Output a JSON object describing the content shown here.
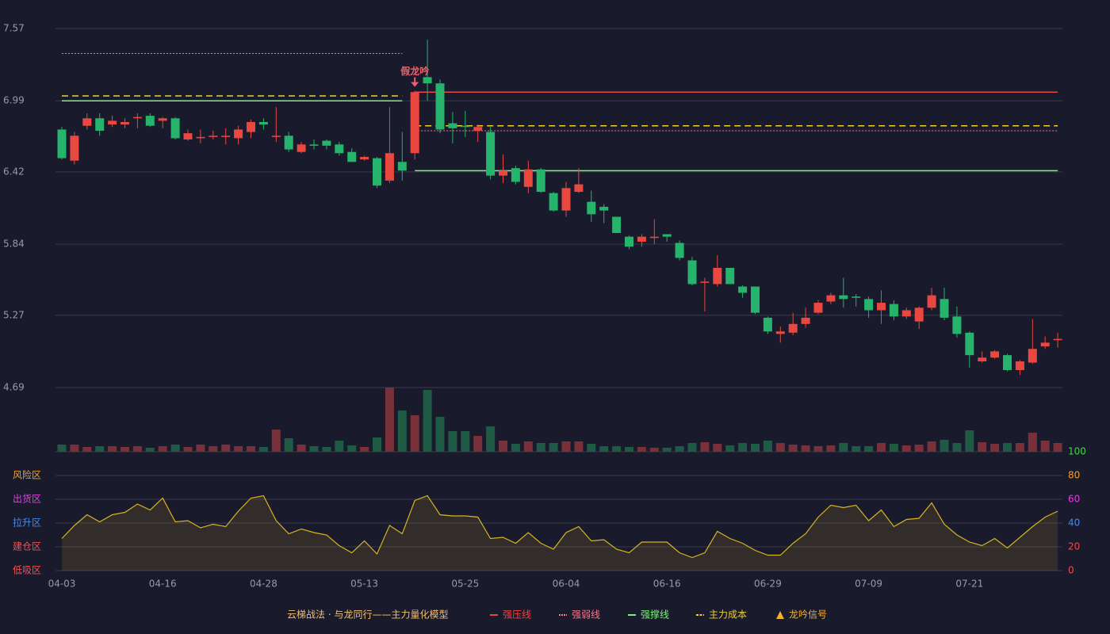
{
  "chart_data": {
    "type": "candlestick",
    "categories": [
      "04-03",
      null,
      null,
      null,
      null,
      null,
      null,
      null,
      "04-16",
      null,
      null,
      null,
      null,
      null,
      null,
      null,
      "04-28",
      null,
      null,
      null,
      null,
      null,
      null,
      null,
      "05-13",
      null,
      null,
      null,
      null,
      null,
      null,
      null,
      "05-25",
      null,
      null,
      null,
      null,
      null,
      null,
      null,
      "06-04",
      null,
      null,
      null,
      null,
      null,
      null,
      null,
      "06-16",
      null,
      null,
      null,
      null,
      null,
      null,
      null,
      "06-29",
      null,
      null,
      null,
      null,
      null,
      null,
      null,
      "07-09",
      null,
      null,
      null,
      null,
      null,
      null,
      null,
      "07-21",
      null,
      null,
      null,
      null,
      null,
      null,
      null
    ],
    "open": [
      6.76,
      6.51,
      6.79,
      6.85,
      6.8,
      6.8,
      6.85,
      6.87,
      6.83,
      6.85,
      6.68,
      6.69,
      6.7,
      6.7,
      6.69,
      6.74,
      6.82,
      6.7,
      6.71,
      6.58,
      6.64,
      6.67,
      6.64,
      6.58,
      6.52,
      6.53,
      6.35,
      6.5,
      6.57,
      7.18,
      7.13,
      6.81,
      6.79,
      6.75,
      6.74,
      6.39,
      6.45,
      6.3,
      6.44,
      6.25,
      6.11,
      6.26,
      6.18,
      6.14,
      6.06,
      5.9,
      5.86,
      5.89,
      5.92,
      5.85,
      5.71,
      5.53,
      5.52,
      5.65,
      5.5,
      5.5,
      5.25,
      5.12,
      5.13,
      5.2,
      5.29,
      5.38,
      5.43,
      5.42,
      5.4,
      5.31,
      5.36,
      5.26,
      5.22,
      5.33,
      5.4,
      5.26,
      5.13,
      4.9,
      4.93,
      4.95,
      4.83,
      4.89,
      5.02,
      5.07
    ],
    "high": [
      6.78,
      6.74,
      6.89,
      6.89,
      6.87,
      6.85,
      6.89,
      6.89,
      6.86,
      6.86,
      6.76,
      6.76,
      6.75,
      6.77,
      6.79,
      6.84,
      6.85,
      6.94,
      6.74,
      6.66,
      6.68,
      6.68,
      6.66,
      6.61,
      6.55,
      6.54,
      6.94,
      6.74,
      7.07,
      7.48,
      7.16,
      6.9,
      6.91,
      6.8,
      6.78,
      6.56,
      6.47,
      6.51,
      6.45,
      6.26,
      6.34,
      6.45,
      6.27,
      6.16,
      6.06,
      5.91,
      5.92,
      6.04,
      5.92,
      5.87,
      5.74,
      5.57,
      5.75,
      5.65,
      5.51,
      5.5,
      5.26,
      5.18,
      5.29,
      5.33,
      5.39,
      5.45,
      5.57,
      5.44,
      5.42,
      5.47,
      5.39,
      5.33,
      5.34,
      5.49,
      5.49,
      5.34,
      5.14,
      4.98,
      4.99,
      4.96,
      4.91,
      5.24,
      5.1,
      5.13
    ],
    "low": [
      6.52,
      6.48,
      6.76,
      6.71,
      6.78,
      6.77,
      6.77,
      6.78,
      6.77,
      6.68,
      6.67,
      6.65,
      6.68,
      6.64,
      6.64,
      6.69,
      6.76,
      6.66,
      6.58,
      6.57,
      6.6,
      6.6,
      6.55,
      6.5,
      6.51,
      6.29,
      6.33,
      6.35,
      6.52,
      6.99,
      6.73,
      6.65,
      6.7,
      6.66,
      6.36,
      6.33,
      6.32,
      6.25,
      6.25,
      6.1,
      6.06,
      6.25,
      6.02,
      6.01,
      5.93,
      5.8,
      5.82,
      5.84,
      5.86,
      5.71,
      5.51,
      5.3,
      5.5,
      5.52,
      5.41,
      5.28,
      5.12,
      5.05,
      5.11,
      5.17,
      5.28,
      5.36,
      5.33,
      5.34,
      5.25,
      5.2,
      5.23,
      5.24,
      5.16,
      5.31,
      5.23,
      5.09,
      4.85,
      4.89,
      4.92,
      4.82,
      4.79,
      4.88,
      5.0,
      5.01
    ],
    "close": [
      6.53,
      6.71,
      6.85,
      6.75,
      6.83,
      6.82,
      6.86,
      6.79,
      6.85,
      6.69,
      6.73,
      6.7,
      6.71,
      6.71,
      6.76,
      6.82,
      6.8,
      6.71,
      6.6,
      6.64,
      6.63,
      6.63,
      6.57,
      6.5,
      6.54,
      6.31,
      6.57,
      6.43,
      7.06,
      7.13,
      6.76,
      6.77,
      6.78,
      6.78,
      6.39,
      6.43,
      6.34,
      6.44,
      6.26,
      6.11,
      6.29,
      6.32,
      6.08,
      6.11,
      5.93,
      5.82,
      5.9,
      5.9,
      5.9,
      5.73,
      5.52,
      5.54,
      5.65,
      5.52,
      5.45,
      5.29,
      5.14,
      5.14,
      5.2,
      5.25,
      5.37,
      5.43,
      5.4,
      5.41,
      5.31,
      5.37,
      5.26,
      5.31,
      5.33,
      5.43,
      5.25,
      5.12,
      4.95,
      4.93,
      4.98,
      4.83,
      4.9,
      5.0,
      5.05,
      5.08
    ],
    "up_color": "#e8483f",
    "down_color": "#26b36b",
    "ylim": [
      4.69,
      7.57
    ],
    "yticks": [
      7.57,
      6.99,
      6.42,
      5.84,
      5.27,
      4.69
    ],
    "grid": true,
    "volume": {
      "values": [
        9,
        9,
        6,
        7,
        7,
        6,
        7,
        5,
        7,
        9,
        6,
        9,
        7,
        9,
        7,
        7,
        6,
        28,
        17,
        9,
        7,
        6,
        14,
        8,
        6,
        18,
        81,
        52,
        46,
        78,
        44,
        26,
        26,
        20,
        32,
        14,
        10,
        13,
        11,
        11,
        13,
        13,
        10,
        7,
        7,
        6,
        6,
        5,
        5,
        7,
        11,
        12,
        10,
        8,
        11,
        10,
        14,
        11,
        9,
        8,
        7,
        8,
        11,
        7,
        7,
        11,
        10,
        8,
        9,
        13,
        15,
        11,
        27,
        12,
        10,
        11,
        11,
        24,
        14,
        11
      ],
      "up_color": "#7a3038",
      "down_color": "#1f5a45"
    },
    "levels": [
      {
        "name": "强压线",
        "color": "#e8483f",
        "style": "solid",
        "values": [
          null,
          null,
          null,
          null,
          null,
          null,
          null,
          null,
          null,
          null,
          null,
          null,
          null,
          null,
          null,
          null,
          null,
          null,
          null,
          null,
          null,
          null,
          null,
          null,
          null,
          null,
          null,
          null,
          7.06,
          7.06,
          7.06,
          7.06,
          7.06,
          7.06,
          7.06,
          7.06,
          7.06,
          7.06,
          7.06,
          7.06,
          7.06,
          7.06,
          7.06,
          7.06,
          7.06,
          7.06,
          7.06,
          7.06,
          7.06,
          7.06,
          7.06,
          7.06,
          7.06,
          7.06,
          7.06,
          7.06,
          7.06,
          7.06,
          7.06,
          7.06,
          7.06,
          7.06,
          7.06,
          7.06,
          7.06,
          7.06,
          7.06,
          7.06,
          7.06,
          7.06,
          7.06,
          7.06,
          7.06,
          7.06,
          7.06,
          7.06,
          7.06,
          7.06,
          7.06,
          7.06
        ]
      },
      {
        "name": "强弱线",
        "color": "#f07a8a",
        "style": "dotted",
        "values": [
          7.37,
          7.37,
          7.37,
          7.37,
          7.37,
          7.37,
          7.37,
          7.37,
          7.37,
          7.37,
          7.37,
          7.37,
          7.37,
          7.37,
          7.37,
          7.37,
          7.37,
          7.37,
          7.37,
          7.37,
          7.37,
          7.37,
          7.37,
          7.37,
          7.37,
          7.37,
          7.37,
          7.37,
          6.75,
          6.75,
          6.75,
          6.75,
          6.75,
          6.75,
          6.75,
          6.75,
          6.75,
          6.75,
          6.75,
          6.75,
          6.75,
          6.75,
          6.75,
          6.75,
          6.75,
          6.75,
          6.75,
          6.75,
          6.75,
          6.75,
          6.75,
          6.75,
          6.75,
          6.75,
          6.75,
          6.75,
          6.75,
          6.75,
          6.75,
          6.75,
          6.75,
          6.75,
          6.75,
          6.75,
          6.75,
          6.75,
          6.75,
          6.75,
          6.75,
          6.75,
          6.75,
          6.75,
          6.75,
          6.75,
          6.75,
          6.75,
          6.75,
          6.75,
          6.75,
          6.75
        ]
      },
      {
        "name": "强撑线",
        "color": "#7cf07c",
        "style": "solid",
        "values": [
          6.99,
          6.99,
          6.99,
          6.99,
          6.99,
          6.99,
          6.99,
          6.99,
          6.99,
          6.99,
          6.99,
          6.99,
          6.99,
          6.99,
          6.99,
          6.99,
          6.99,
          6.99,
          6.99,
          6.99,
          6.99,
          6.99,
          6.99,
          6.99,
          6.99,
          6.99,
          6.99,
          6.99,
          6.43,
          6.43,
          6.43,
          6.43,
          6.43,
          6.43,
          6.43,
          6.43,
          6.43,
          6.43,
          6.43,
          6.43,
          6.43,
          6.43,
          6.43,
          6.43,
          6.43,
          6.43,
          6.43,
          6.43,
          6.43,
          6.43,
          6.43,
          6.43,
          6.43,
          6.43,
          6.43,
          6.43,
          6.43,
          6.43,
          6.43,
          6.43,
          6.43,
          6.43,
          6.43,
          6.43,
          6.43,
          6.43,
          6.43,
          6.43,
          6.43,
          6.43,
          6.43,
          6.43,
          6.43,
          6.43,
          6.43,
          6.43,
          6.43,
          6.43,
          6.43,
          6.43
        ]
      },
      {
        "name": "主力成本",
        "color": "#f0d030",
        "style": "dashed",
        "values": [
          7.03,
          7.03,
          7.03,
          7.03,
          7.03,
          7.03,
          7.03,
          7.03,
          7.03,
          7.03,
          7.03,
          7.03,
          7.03,
          7.03,
          7.03,
          7.03,
          7.03,
          7.03,
          7.03,
          7.03,
          7.03,
          7.03,
          7.03,
          7.03,
          7.03,
          7.03,
          7.03,
          7.03,
          6.79,
          6.79,
          6.79,
          6.79,
          6.79,
          6.79,
          6.79,
          6.79,
          6.79,
          6.79,
          6.79,
          6.79,
          6.79,
          6.79,
          6.79,
          6.79,
          6.79,
          6.79,
          6.79,
          6.79,
          6.79,
          6.79,
          6.79,
          6.79,
          6.79,
          6.79,
          6.79,
          6.79,
          6.79,
          6.79,
          6.79,
          6.79,
          6.79,
          6.79,
          6.79,
          6.79,
          6.79,
          6.79,
          6.79,
          6.79,
          6.79,
          6.79,
          6.79,
          6.79,
          6.79,
          6.79,
          6.79,
          6.79,
          6.79,
          6.79,
          6.79,
          6.79
        ]
      }
    ],
    "annotations": [
      {
        "text": "假龙吟",
        "x": 28,
        "color": "#f0606a"
      }
    ],
    "signal_legend": {
      "name": "龙吟信号",
      "color": "#f0b030"
    },
    "model_name": "云梯战法 · 与龙同行——主力量化模型",
    "oscillator": {
      "values": [
        27,
        38,
        47,
        41,
        47,
        49,
        56,
        51,
        61,
        41,
        42,
        36,
        39,
        37,
        50,
        61,
        63,
        42,
        31,
        35,
        32,
        30,
        21,
        15,
        25,
        14,
        38,
        31,
        59,
        63,
        47,
        46,
        46,
        45,
        27,
        28,
        23,
        32,
        23,
        18,
        32,
        37,
        25,
        26,
        18,
        15,
        24,
        24,
        24,
        15,
        11,
        15,
        33,
        27,
        23,
        17,
        13,
        13,
        23,
        31,
        45,
        55,
        53,
        55,
        42,
        51,
        37,
        43,
        44,
        57,
        39,
        30,
        24,
        21,
        27,
        19,
        28,
        37,
        45,
        50
      ],
      "color": "#d8b420",
      "ylim": [
        0,
        100
      ],
      "yticks": [
        100,
        80,
        60,
        40,
        20,
        0
      ],
      "tick_colors": [
        "#3adb3a",
        "#f0a030",
        "#e040e0",
        "#4a8ae8",
        "#f04a4a",
        "#f04a4a"
      ],
      "zones": [
        {
          "value": 80,
          "label": "风险区",
          "color": "#f0a030"
        },
        {
          "value": 60,
          "label": "出货区",
          "color": "#e040e0"
        },
        {
          "value": 40,
          "label": "拉升区",
          "color": "#4a8ae8"
        },
        {
          "value": 20,
          "label": "建仓区",
          "color": "#f05050"
        },
        {
          "value": 0,
          "label": "低吸区",
          "color": "#f05050"
        }
      ]
    }
  }
}
